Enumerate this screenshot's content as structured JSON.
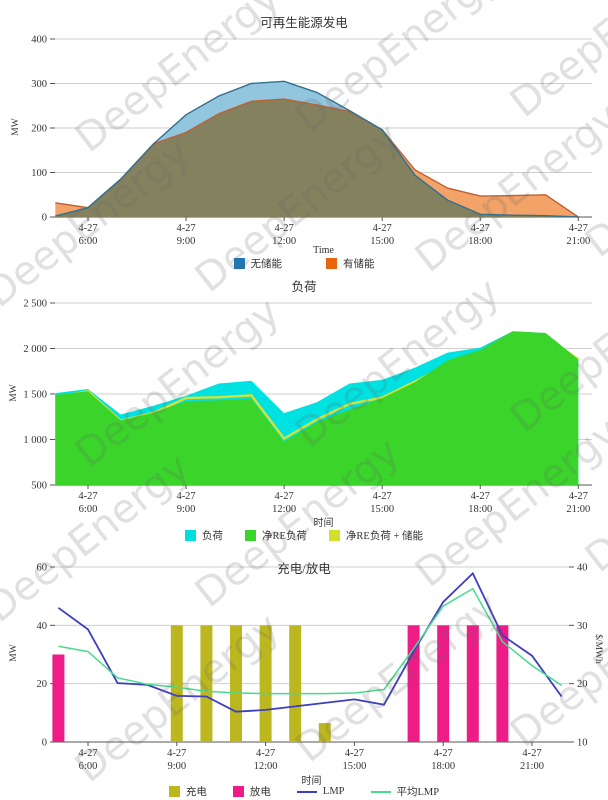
{
  "watermark": {
    "text": "DeepEnergy"
  },
  "chart_data": [
    {
      "type": "area",
      "title": "可再生能源发电",
      "xlabel": "Time",
      "ylabel": "MW",
      "ylim": [
        0,
        400
      ],
      "x_hours": [
        5,
        6,
        7,
        8,
        9,
        10,
        11,
        12,
        13,
        14,
        15,
        16,
        17,
        18,
        19,
        20,
        21
      ],
      "x_ticks": [
        {
          "h": 6,
          "l1": "4-27",
          "l2": "6:00"
        },
        {
          "h": 9,
          "l1": "4-27",
          "l2": "9:00"
        },
        {
          "h": 12,
          "l1": "4-27",
          "l2": "12:00"
        },
        {
          "h": 15,
          "l1": "4-27",
          "l2": "15:00"
        },
        {
          "h": 18,
          "l1": "4-27",
          "l2": "18:00"
        },
        {
          "h": 21,
          "l1": "4-27",
          "l2": "21:00"
        }
      ],
      "y_ticks": [
        {
          "value": 0,
          "label": "0"
        },
        {
          "value": 100,
          "label": "100"
        },
        {
          "value": 200,
          "label": "200"
        },
        {
          "value": 300,
          "label": "300"
        },
        {
          "value": 400,
          "label": "400"
        }
      ],
      "series": [
        {
          "name": "无储能",
          "kind": "area",
          "fill": "#92c5de",
          "stroke": "#31708f",
          "legend_color": "#1f77b4",
          "values": [
            2,
            21,
            85,
            164,
            230,
            272,
            300,
            305,
            280,
            239,
            196,
            94,
            38,
            6,
            4,
            3,
            0
          ]
        },
        {
          "name": "有储能",
          "kind": "area",
          "fill": "#f3a368",
          "stroke": "#c0602f",
          "legend_color": "#e8650d",
          "values": [
            32,
            21,
            85,
            164,
            190,
            232,
            260,
            265,
            252,
            237,
            196,
            106,
            65,
            47,
            48,
            50,
            0
          ]
        }
      ],
      "overlap_color": "#84815f",
      "legend_position": "bottom",
      "grid": true
    },
    {
      "type": "area",
      "title": "负荷",
      "xlabel": "时间",
      "ylabel": "MW",
      "ylim": [
        500,
        2500
      ],
      "x_hours": [
        5,
        6,
        7,
        8,
        9,
        10,
        11,
        12,
        13,
        14,
        15,
        16,
        17,
        18,
        19,
        20,
        21
      ],
      "x_ticks": [
        {
          "h": 6,
          "l1": "4-27",
          "l2": "6:00"
        },
        {
          "h": 9,
          "l1": "4-27",
          "l2": "9:00"
        },
        {
          "h": 12,
          "l1": "4-27",
          "l2": "12:00"
        },
        {
          "h": 15,
          "l1": "4-27",
          "l2": "15:00"
        },
        {
          "h": 18,
          "l1": "4-27",
          "l2": "18:00"
        },
        {
          "h": 21,
          "l1": "4-27",
          "l2": "21:00"
        }
      ],
      "y_ticks": [
        {
          "value": 500,
          "label": "500"
        },
        {
          "value": 1000,
          "label": "1 000"
        },
        {
          "value": 1500,
          "label": "1 500"
        },
        {
          "value": 2000,
          "label": "2 000"
        },
        {
          "value": 2500,
          "label": "2 500"
        }
      ],
      "series": [
        {
          "name": "负荷",
          "kind": "area",
          "draw": 1,
          "fill": "#00e2e2",
          "legend_color": "#00dfe0",
          "values": [
            1510,
            1555,
            1275,
            1370,
            1480,
            1615,
            1645,
            1290,
            1410,
            1615,
            1655,
            1790,
            1955,
            2010,
            2190,
            2170,
            1880
          ]
        },
        {
          "name": "净RE负荷",
          "kind": "area",
          "draw": 3,
          "fill": "#3bd42a",
          "legend_color": "#3bd42a",
          "values": [
            1490,
            1530,
            1210,
            1295,
            1420,
            1430,
            1450,
            975,
            1190,
            1330,
            1455,
            1630,
            1870,
            1985,
            2190,
            2170,
            1880
          ]
        },
        {
          "name": "净RE负荷 + 储能",
          "kind": "line",
          "draw": 2,
          "stroke": "#d8e22e",
          "legend_color": "#d4df2b",
          "values": [
            1460,
            1530,
            1205,
            1293,
            1455,
            1465,
            1485,
            1010,
            1220,
            1390,
            1460,
            1635,
            1830,
            1945,
            2150,
            2130,
            1880
          ]
        }
      ],
      "legend_position": "bottom",
      "grid": true
    },
    {
      "type": "bar-line",
      "title": "充电/放电",
      "xlabel": "时间",
      "ylabel_left": "MW",
      "ylabel_right": "$/MWh",
      "ylim_left": [
        0,
        60
      ],
      "ylim_right": [
        10,
        40
      ],
      "x_ticks": [
        {
          "h": 6,
          "l1": "4-27",
          "l2": "6:00"
        },
        {
          "h": 9,
          "l1": "4-27",
          "l2": "9:00"
        },
        {
          "h": 12,
          "l1": "4-27",
          "l2": "12:00"
        },
        {
          "h": 15,
          "l1": "4-27",
          "l2": "15:00"
        },
        {
          "h": 18,
          "l1": "4-27",
          "l2": "18:00"
        },
        {
          "h": 21,
          "l1": "4-27",
          "l2": "21:00"
        }
      ],
      "y_ticks_left": [
        {
          "value": 0,
          "label": "0"
        },
        {
          "value": 20,
          "label": "20"
        },
        {
          "value": 40,
          "label": "40"
        },
        {
          "value": 60,
          "label": "60"
        }
      ],
      "y_ticks_right": [
        {
          "value": 10,
          "label": "10"
        },
        {
          "value": 20,
          "label": "20"
        },
        {
          "value": 30,
          "label": "30"
        },
        {
          "value": 40,
          "label": "40"
        }
      ],
      "bars": [
        {
          "name": "充电",
          "color": "#bdb71f",
          "axis": "left",
          "points": [
            {
              "hour": 9,
              "mw": 40
            },
            {
              "hour": 10,
              "mw": 40
            },
            {
              "hour": 11,
              "mw": 40
            },
            {
              "hour": 12,
              "mw": 40
            },
            {
              "hour": 13,
              "mw": 40
            },
            {
              "hour": 14,
              "mw": 6.5
            }
          ]
        },
        {
          "name": "放电",
          "color": "#ee1c86",
          "axis": "left",
          "points": [
            {
              "hour": 5,
              "mw": 30
            },
            {
              "hour": 17,
              "mw": 40
            },
            {
              "hour": 18,
              "mw": 40
            },
            {
              "hour": 19,
              "mw": 40
            },
            {
              "hour": 20,
              "mw": 40
            }
          ]
        }
      ],
      "lines": [
        {
          "name": "LMP",
          "color": "#3c3fc0",
          "axis": "right",
          "x_hours": [
            5,
            6,
            7,
            8,
            9,
            10,
            11,
            12,
            13,
            14,
            15,
            16,
            17,
            18,
            19,
            20,
            21,
            22
          ],
          "values": [
            33.0,
            29.3,
            20.1,
            19.8,
            17.9,
            17.8,
            15.2,
            15.5,
            16.1,
            16.7,
            17.3,
            16.4,
            25.5,
            34.0,
            38.9,
            28.3,
            24.8,
            17.8
          ]
        },
        {
          "name": "平均LMP",
          "color": "#46dc8c",
          "axis": "right",
          "x_hours": [
            5,
            6,
            7,
            8,
            9,
            10,
            11,
            12,
            13,
            14,
            15,
            16,
            17,
            18,
            19,
            20,
            21,
            22
          ],
          "values": [
            26.4,
            25.5,
            21.0,
            19.9,
            19.4,
            18.7,
            18.4,
            18.3,
            18.3,
            18.3,
            18.4,
            19.0,
            26.0,
            33.3,
            36.3,
            27.2,
            23.1,
            19.7
          ]
        }
      ],
      "legend_position": "bottom",
      "grid": true
    }
  ]
}
